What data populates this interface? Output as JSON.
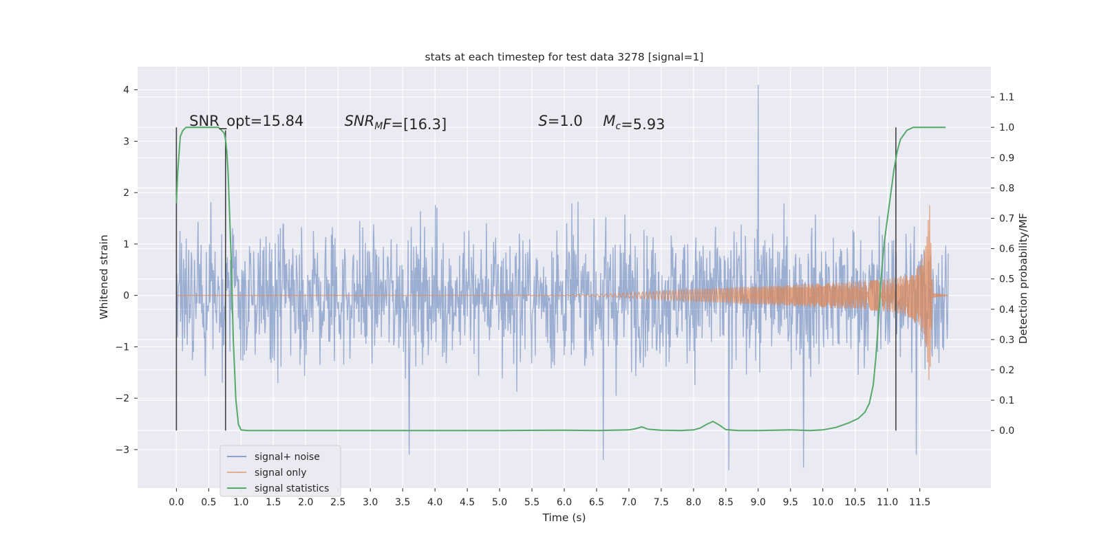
{
  "chart_data": {
    "type": "line",
    "title": "stats at each timestep for test data 3278 [signal=1]",
    "xlabel": "Time (s)",
    "ylabel": "Whitened strain",
    "y2label": "Detection probability/MF",
    "xlim": [
      -0.6,
      12.6
    ],
    "ylim": [
      -3.75,
      4.45
    ],
    "y2lim": [
      -0.19,
      1.2
    ],
    "xticks": [
      0.0,
      0.5,
      1.0,
      1.5,
      2.0,
      2.5,
      3.0,
      3.5,
      4.0,
      4.5,
      5.0,
      5.5,
      6.0,
      6.5,
      7.0,
      7.5,
      8.0,
      8.5,
      9.0,
      9.5,
      10.0,
      10.5,
      11.0,
      11.5
    ],
    "xtick_labels": [
      "0.0",
      "0.5",
      "1.0",
      "1.5",
      "2.0",
      "2.5",
      "3.0",
      "3.5",
      "4.0",
      "4.5",
      "5.0",
      "5.5",
      "6.0",
      "6.5",
      "7.0",
      "7.5",
      "8.0",
      "8.5",
      "9.0",
      "9.5",
      "10.0",
      "10.5",
      "11.0",
      "11.5"
    ],
    "yticks": [
      -3,
      -2,
      -1,
      0,
      1,
      2,
      3,
      4
    ],
    "ytick_labels": [
      "−3",
      "−2",
      "−1",
      "0",
      "1",
      "2",
      "3",
      "4"
    ],
    "y2ticks": [
      0.0,
      0.1,
      0.2,
      0.3,
      0.4,
      0.5,
      0.6,
      0.7,
      0.8,
      0.9,
      1.0,
      1.1
    ],
    "y2tick_labels": [
      "0.0",
      "0.1",
      "0.2",
      "0.3",
      "0.4",
      "0.5",
      "0.6",
      "0.7",
      "0.8",
      "0.9",
      "1.0",
      "1.1"
    ],
    "grid": true,
    "legend_position": "lower-left",
    "series": [
      {
        "name": "signal+ noise",
        "axis": "left",
        "color": "#4c72b0",
        "note": "dense whitened noise trace, roughly |y| < 2.5 with excursions to 4.1 near t=9.0 and -3.4 near t=8.55",
        "x": [
          0.0,
          11.94
        ],
        "peak_points": [
          [
            9.0,
            4.1
          ],
          [
            8.55,
            -3.4
          ],
          [
            9.7,
            -3.35
          ],
          [
            6.6,
            -3.2
          ],
          [
            3.6,
            -3.1
          ],
          [
            11.45,
            -3.1
          ]
        ]
      },
      {
        "name": "signal only",
        "axis": "left",
        "color": "#dd8452",
        "note": "chirp signal, envelope amplitude vs time",
        "x": [
          0.0,
          5.0,
          6.0,
          6.5,
          7.0,
          8.0,
          9.0,
          10.0,
          10.5,
          11.0,
          11.3,
          11.5,
          11.6,
          11.65,
          11.7,
          11.94
        ],
        "envelope": [
          0.0,
          0.005,
          0.01,
          0.02,
          0.05,
          0.12,
          0.18,
          0.24,
          0.27,
          0.32,
          0.4,
          0.6,
          1.0,
          1.8,
          0.05,
          0.0
        ]
      },
      {
        "name": "signal statistics",
        "axis": "right",
        "color": "#55a868",
        "x": [
          0.0,
          0.02,
          0.06,
          0.1,
          0.15,
          0.2,
          0.3,
          0.4,
          0.5,
          0.6,
          0.65,
          0.7,
          0.74,
          0.76,
          0.78,
          0.8,
          0.82,
          0.85,
          0.88,
          0.92,
          0.96,
          1.0,
          1.1,
          2.0,
          3.0,
          4.0,
          5.0,
          6.0,
          6.5,
          7.0,
          7.1,
          7.2,
          7.3,
          7.5,
          7.8,
          8.0,
          8.1,
          8.2,
          8.3,
          8.4,
          8.5,
          8.7,
          9.0,
          9.5,
          9.8,
          10.0,
          10.2,
          10.4,
          10.55,
          10.65,
          10.72,
          10.78,
          10.82,
          10.86,
          10.9,
          10.95,
          11.0,
          11.05,
          11.1,
          11.15,
          11.2,
          11.3,
          11.4,
          11.5,
          11.6,
          11.75,
          11.9
        ],
        "values": [
          0.75,
          0.85,
          0.97,
          0.99,
          1.0,
          1.0,
          1.0,
          1.0,
          1.0,
          1.0,
          1.0,
          0.99,
          0.98,
          0.96,
          0.92,
          0.85,
          0.73,
          0.55,
          0.3,
          0.1,
          0.02,
          0.002,
          0.0,
          0.0,
          0.0,
          0.0,
          0.0,
          0.001,
          0.0,
          0.002,
          0.006,
          0.012,
          0.004,
          0.001,
          0.0,
          0.002,
          0.008,
          0.02,
          0.03,
          0.018,
          0.003,
          0.0,
          0.0,
          0.002,
          0.0,
          0.002,
          0.01,
          0.025,
          0.04,
          0.06,
          0.09,
          0.15,
          0.24,
          0.36,
          0.5,
          0.62,
          0.7,
          0.78,
          0.86,
          0.92,
          0.96,
          0.99,
          1.0,
          1.0,
          1.0,
          1.0,
          1.0
        ]
      }
    ],
    "vlines": [
      {
        "x": 0.0,
        "y2": [
          0.0,
          1.0
        ],
        "color": "#404040"
      },
      {
        "x": 0.76,
        "y2": [
          0.0,
          0.99
        ],
        "color": "#404040"
      },
      {
        "x": 11.13,
        "y2": [
          0.0,
          1.0
        ],
        "color": "#404040"
      }
    ],
    "annotations": [
      {
        "id": "snr-opt",
        "segments": [
          {
            "t": "SNR_opt=15.84",
            "s": "n"
          }
        ],
        "x": 0.2,
        "y": 3.3
      },
      {
        "id": "snr-mf",
        "segments": [
          {
            "t": "SNR",
            "s": "i"
          },
          {
            "t": "M",
            "s": "isub"
          },
          {
            "t": "F",
            "s": "i"
          },
          {
            "t": "=[16.3]",
            "s": "n"
          }
        ],
        "x": 2.6,
        "y": 3.3
      },
      {
        "id": "s-value",
        "segments": [
          {
            "t": "S",
            "s": "i"
          },
          {
            "t": "=1.0",
            "s": "n"
          }
        ],
        "x": 5.6,
        "y": 3.3
      },
      {
        "id": "mc-value",
        "segments": [
          {
            "t": "M",
            "s": "i"
          },
          {
            "t": "c",
            "s": "isub"
          },
          {
            "t": "=5.93",
            "s": "n"
          }
        ],
        "x": 6.6,
        "y": 3.3
      }
    ],
    "legend": [
      "signal+ noise",
      "signal only",
      "signal statistics"
    ]
  }
}
